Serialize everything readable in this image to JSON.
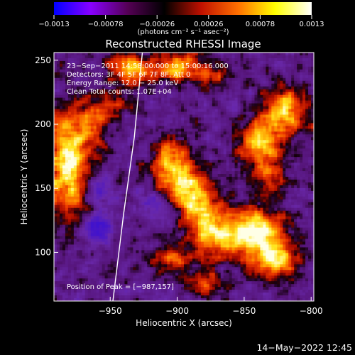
{
  "chart_data": {
    "type": "heatmap",
    "title": "Reconstructed RHESSI Image",
    "xlabel": "Heliocentric X (arcsec)",
    "ylabel": "Heliocentric Y (arcsec)",
    "xlim": [
      -992,
      -798
    ],
    "ylim": [
      62,
      256
    ],
    "x_ticks": [
      -950,
      -900,
      -850,
      -800
    ],
    "x_tick_labels": [
      "−950",
      "−900",
      "−850",
      "−800"
    ],
    "y_ticks": [
      100,
      150,
      200,
      250
    ],
    "y_tick_labels": [
      "100",
      "150",
      "200",
      "250"
    ],
    "colorbar": {
      "min": -0.0013,
      "max": 0.0013,
      "ticks": [
        -0.0013,
        -0.00078,
        -0.00026,
        0.00026,
        0.00078,
        0.0013
      ],
      "tick_labels": [
        "−0.0013",
        "−0.00078",
        "−0.00026",
        "0.00026",
        "0.00078",
        "0.0013"
      ],
      "unit_label": "(photons cm⁻² s⁻¹ asec⁻²)",
      "colors": [
        "#0000ff",
        "#8800ff",
        "#550055",
        "#000000",
        "#c01000",
        "#ff7000",
        "#ffff00",
        "#ffffff"
      ]
    },
    "info_lines": [
      "23−Sep−2011 14:58:00.000 to 15:00:16.000",
      "Detectors: 3F 4F 5F 6F 7F 8F, Att 0",
      "Energy Range: 12.0 − 25.0 keV",
      "Clean    Total counts: 1.07E+04"
    ],
    "peak_annotation": "Position of Peak = [−987,157]",
    "peak_position": [
      -987,
      157
    ],
    "limb_curve": [
      [
        -948,
        62
      ],
      [
        -940,
        130
      ],
      [
        -932,
        190
      ],
      [
        -926,
        256
      ]
    ],
    "grid": false
  },
  "timestamp": "14−May−2022 12:45"
}
